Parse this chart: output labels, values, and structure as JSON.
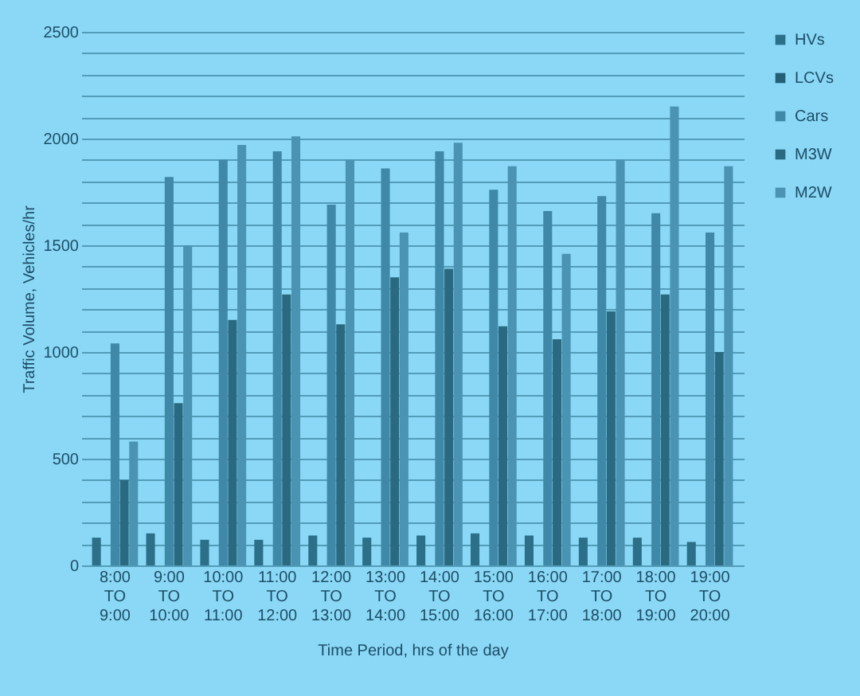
{
  "chart_data": {
    "type": "bar",
    "xlabel": "Time Period, hrs of the day",
    "ylabel": "Traffic Volume, Vehicles/hr",
    "categories": [
      "8:00\nTO\n9:00",
      "9:00\nTO\n10:00",
      "10:00\nTO\n11:00",
      "11:00\nTO\n12:00",
      "12:00\nTO\n13:00",
      "13:00\nTO\n14:00",
      "14:00\nTO\n15:00",
      "15:00\nTO\n16:00",
      "16:00\nTO\n17:00",
      "17:00\nTO\n18:00",
      "18:00\nTO\n19:00",
      "19:00\nTO\n20:00"
    ],
    "series": [
      {
        "name": "HVs",
        "color": "#2b6f88",
        "values": [
          130,
          150,
          120,
          120,
          140,
          130,
          140,
          150,
          140,
          130,
          130,
          110
        ]
      },
      {
        "name": "LCVs",
        "color": "#245f78",
        "values": [
          0,
          0,
          0,
          0,
          0,
          0,
          0,
          0,
          0,
          0,
          0,
          0
        ]
      },
      {
        "name": "Cars",
        "color": "#3f88a8",
        "values": [
          1040,
          1820,
          1900,
          1940,
          1690,
          1860,
          1940,
          1760,
          1660,
          1730,
          1650,
          1560
        ]
      },
      {
        "name": "M3W",
        "color": "#2a6a80",
        "values": [
          400,
          760,
          1150,
          1270,
          1130,
          1350,
          1390,
          1120,
          1060,
          1190,
          1270,
          1000
        ]
      },
      {
        "name": "M2W",
        "color": "#4b93b3",
        "values": [
          580,
          1500,
          1970,
          2010,
          1900,
          1560,
          1980,
          1870,
          1460,
          1900,
          2150,
          1870
        ]
      }
    ],
    "ylim": [
      0,
      2500
    ],
    "yticks": [
      0,
      {
        "value": 100,
        "label": null
      },
      {
        "value": 200,
        "label": null
      },
      {
        "value": 300,
        "label": null
      },
      {
        "value": 400,
        "label": null
      },
      500,
      {
        "value": 600,
        "label": null
      },
      {
        "value": 700,
        "label": null
      },
      {
        "value": 800,
        "label": null
      },
      {
        "value": 900,
        "label": null
      },
      1000,
      {
        "value": 1100,
        "label": null
      },
      {
        "value": 1200,
        "label": null
      },
      {
        "value": 1300,
        "label": null
      },
      {
        "value": 1400,
        "label": null
      },
      1500,
      {
        "value": 1600,
        "label": null
      },
      {
        "value": 1700,
        "label": null
      },
      {
        "value": 1800,
        "label": null
      },
      {
        "value": 1900,
        "label": null
      },
      2000,
      {
        "value": 2100,
        "label": null
      },
      {
        "value": 2200,
        "label": null
      },
      {
        "value": 2300,
        "label": null
      },
      {
        "value": 2400,
        "label": null
      },
      2500
    ],
    "grid": "y",
    "legend": "right"
  }
}
